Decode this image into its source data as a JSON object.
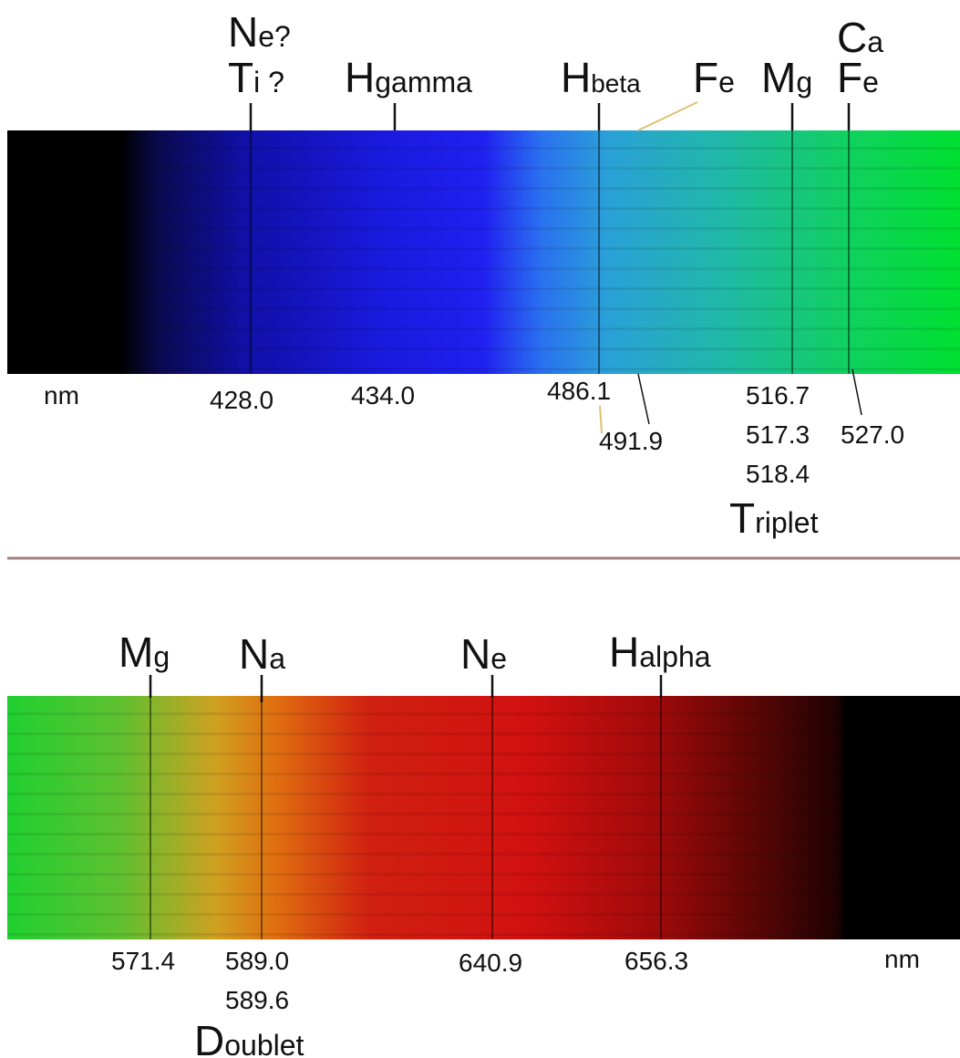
{
  "top": {
    "elements": [
      "Ne?",
      "Ti ?",
      "Hgamma",
      "Hbeta",
      "Fe",
      "Mg",
      "Ca",
      "Fe"
    ],
    "unit": "nm",
    "wavelengths": [
      "428.0",
      "434.0",
      "486.1",
      "491.9",
      "516.7",
      "517.3",
      "518.4",
      "527.0"
    ],
    "group_label": "Triplet"
  },
  "bottom": {
    "elements": [
      "Mg",
      "Na",
      "Ne",
      "Halpha"
    ],
    "wavelengths": [
      "571.4",
      "589.0",
      "589.6",
      "640.9",
      "656.3"
    ],
    "group_label": "Doublet",
    "unit": "nm"
  }
}
